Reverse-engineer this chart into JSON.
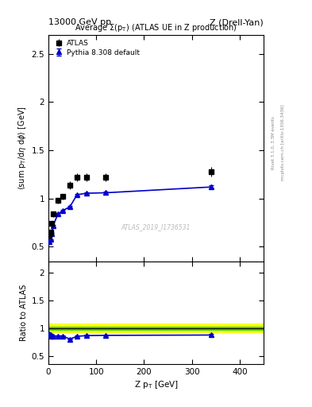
{
  "header_left": "13000 GeV pp",
  "header_right": "Z (Drell-Yan)",
  "right_label1": "Rivet 3.1.0, 3.3M events",
  "right_label2": "mcplots.cern.ch [arXiv:1306.3436]",
  "watermark": "ATLAS_2019_I1736531",
  "xlabel": "Z p$_T$ [GeV]",
  "ylabel": "<sum p$_T$/dη dϕ> [GeV]",
  "ylabel_ratio": "Ratio to ATLAS",
  "title": "Average Σ(p$_T$) (ATLAS UE in Z production)",
  "atlas_x": [
    2.5,
    5.0,
    7.5,
    10.0,
    20.0,
    30.0,
    45.0,
    60.0,
    80.0,
    120.0,
    340.0
  ],
  "atlas_y": [
    0.62,
    0.65,
    0.74,
    0.84,
    0.98,
    1.02,
    1.14,
    1.22,
    1.22,
    1.22,
    1.28
  ],
  "atlas_yerr_lo": [
    0.03,
    0.03,
    0.03,
    0.03,
    0.03,
    0.03,
    0.04,
    0.04,
    0.04,
    0.04,
    0.05
  ],
  "atlas_yerr_hi": [
    0.03,
    0.03,
    0.03,
    0.03,
    0.03,
    0.03,
    0.04,
    0.04,
    0.04,
    0.04,
    0.05
  ],
  "pythia_x": [
    2.5,
    5.0,
    7.5,
    10.0,
    20.0,
    30.0,
    45.0,
    60.0,
    80.0,
    120.0,
    340.0
  ],
  "pythia_y": [
    0.555,
    0.575,
    0.635,
    0.72,
    0.84,
    0.875,
    0.915,
    1.04,
    1.055,
    1.06,
    1.12
  ],
  "pythia_yerr_lo": [
    0.005,
    0.005,
    0.005,
    0.008,
    0.008,
    0.008,
    0.008,
    0.01,
    0.01,
    0.01,
    0.015
  ],
  "pythia_yerr_hi": [
    0.005,
    0.005,
    0.005,
    0.008,
    0.008,
    0.008,
    0.008,
    0.01,
    0.01,
    0.01,
    0.015
  ],
  "ratio_x": [
    2.5,
    5.0,
    7.5,
    10.0,
    20.0,
    30.0,
    45.0,
    60.0,
    80.0,
    120.0,
    340.0
  ],
  "ratio_y": [
    0.895,
    0.885,
    0.858,
    0.857,
    0.857,
    0.858,
    0.803,
    0.852,
    0.865,
    0.869,
    0.875
  ],
  "ratio_yerr_lo": [
    0.012,
    0.012,
    0.012,
    0.012,
    0.012,
    0.012,
    0.012,
    0.014,
    0.014,
    0.014,
    0.018
  ],
  "ratio_yerr_hi": [
    0.012,
    0.012,
    0.012,
    0.012,
    0.012,
    0.012,
    0.012,
    0.014,
    0.014,
    0.014,
    0.018
  ],
  "band_yellow_lo": 0.925,
  "band_yellow_hi": 1.075,
  "band_green_lo": 0.972,
  "band_green_hi": 1.028,
  "ylim_main": [
    0.35,
    2.7
  ],
  "ylim_ratio": [
    0.35,
    2.2
  ],
  "xlim": [
    0,
    450
  ],
  "yticks_main": [
    0.5,
    1.0,
    1.5,
    2.0,
    2.5
  ],
  "yticks_ratio": [
    0.5,
    1.0,
    1.5,
    2.0
  ],
  "xticks": [
    0,
    100,
    200,
    300,
    400
  ],
  "atlas_color": "#000000",
  "pythia_color": "#0000cc",
  "yellow_color": "#ffff00",
  "green_color": "#00cc00",
  "grid_color": "#cccccc"
}
